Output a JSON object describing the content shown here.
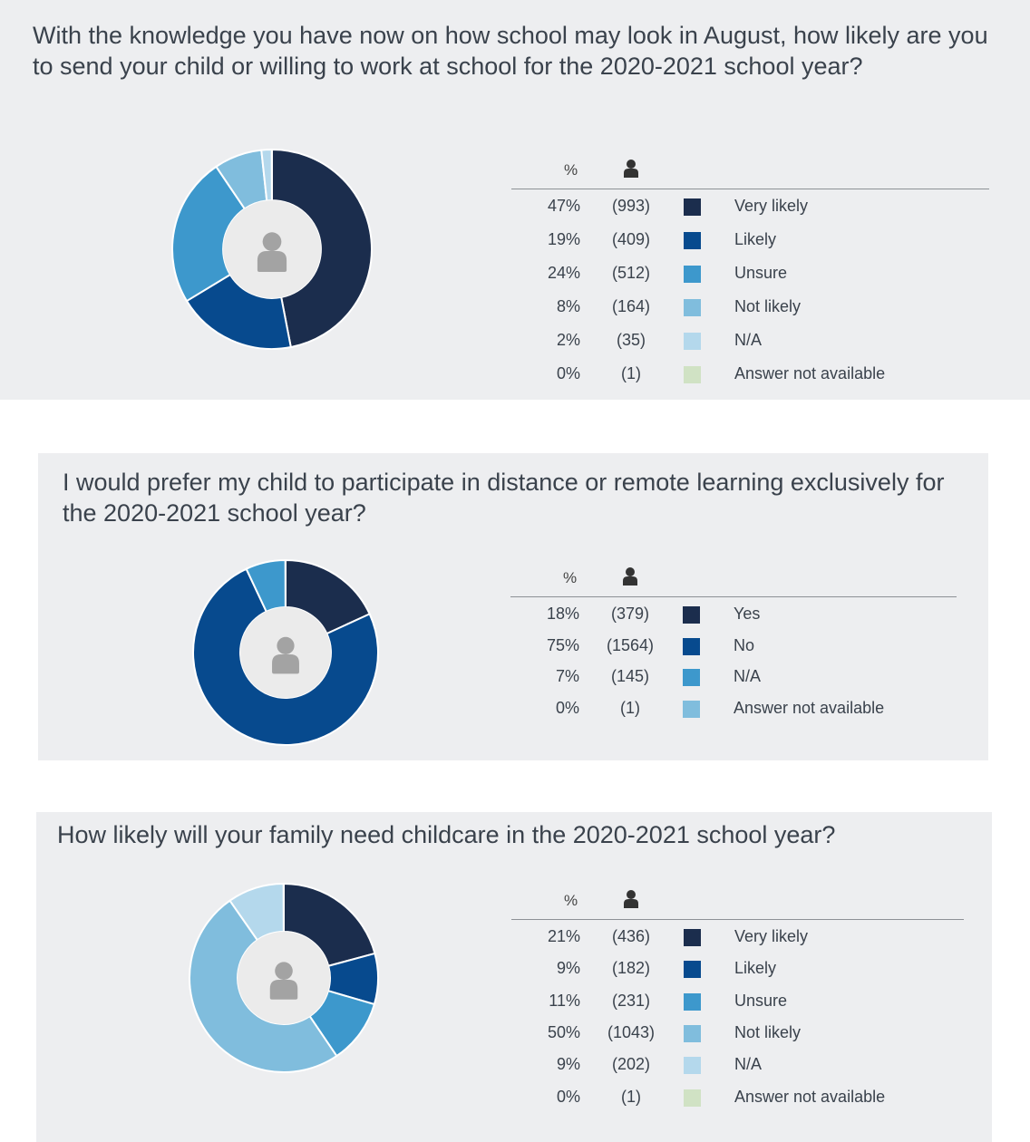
{
  "charts": [
    {
      "question": "With the knowledge you have now on how school may look in August, how likely are you to send your child or willing to work at school for the 2020-2021 school year?",
      "header_pct": "%",
      "rows": [
        {
          "pct": "47%",
          "count": "(993)",
          "label": "Very likely",
          "color": "#1b2d4d"
        },
        {
          "pct": "19%",
          "count": "(409)",
          "label": "Likely",
          "color": "#074a8e"
        },
        {
          "pct": "24%",
          "count": "(512)",
          "label": "Unsure",
          "color": "#3d98cc"
        },
        {
          "pct": "8%",
          "count": "(164)",
          "label": "Not likely",
          "color": "#80bddd"
        },
        {
          "pct": "2%",
          "count": "(35)",
          "label": "N/A",
          "color": "#b4d8ec"
        },
        {
          "pct": "0%",
          "count": "(1)",
          "label": "Answer not available",
          "color": "#d0e2c4"
        }
      ]
    },
    {
      "question": "I would prefer my child to participate in distance or remote learning exclusively for the 2020-2021 school year?",
      "header_pct": "%",
      "rows": [
        {
          "pct": "18%",
          "count": "(379)",
          "label": "Yes",
          "color": "#1b2d4d"
        },
        {
          "pct": "75%",
          "count": "(1564)",
          "label": "No",
          "color": "#074a8e"
        },
        {
          "pct": "7%",
          "count": "(145)",
          "label": "N/A",
          "color": "#3d98cc"
        },
        {
          "pct": "0%",
          "count": "(1)",
          "label": "Answer not available",
          "color": "#80bddd"
        }
      ]
    },
    {
      "question": "How likely will your family need childcare in the 2020-2021 school year?",
      "header_pct": "%",
      "rows": [
        {
          "pct": "21%",
          "count": "(436)",
          "label": "Very likely",
          "color": "#1b2d4d"
        },
        {
          "pct": "9%",
          "count": "(182)",
          "label": "Likely",
          "color": "#074a8e"
        },
        {
          "pct": "11%",
          "count": "(231)",
          "label": "Unsure",
          "color": "#3d98cc"
        },
        {
          "pct": "50%",
          "count": "(1043)",
          "label": "Not likely",
          "color": "#80bddd"
        },
        {
          "pct": "9%",
          "count": "(202)",
          "label": "N/A",
          "color": "#b4d8ec"
        },
        {
          "pct": "0%",
          "count": "(1)",
          "label": "Answer not available",
          "color": "#d0e2c4"
        }
      ]
    }
  ],
  "chart_data": [
    {
      "type": "pie",
      "title": "With the knowledge you have now on how school may look in August, how likely are you to send your child or willing to work at school for the 2020-2021 school year?",
      "categories": [
        "Very likely",
        "Likely",
        "Unsure",
        "Not likely",
        "N/A",
        "Answer not available"
      ],
      "values": [
        993,
        409,
        512,
        164,
        35,
        1
      ],
      "percent": [
        47,
        19,
        24,
        8,
        2,
        0
      ],
      "colors": [
        "#1b2d4d",
        "#074a8e",
        "#3d98cc",
        "#80bddd",
        "#b4d8ec",
        "#d0e2c4"
      ]
    },
    {
      "type": "pie",
      "title": "I would prefer my child to participate in distance or remote learning exclusively for the 2020-2021 school year?",
      "categories": [
        "Yes",
        "No",
        "N/A",
        "Answer not available"
      ],
      "values": [
        379,
        1564,
        145,
        1
      ],
      "percent": [
        18,
        75,
        7,
        0
      ],
      "colors": [
        "#1b2d4d",
        "#074a8e",
        "#3d98cc",
        "#80bddd"
      ]
    },
    {
      "type": "pie",
      "title": "How likely will your family need childcare in the 2020-2021 school year?",
      "categories": [
        "Very likely",
        "Likely",
        "Unsure",
        "Not likely",
        "N/A",
        "Answer not available"
      ],
      "values": [
        436,
        182,
        231,
        1043,
        202,
        1
      ],
      "percent": [
        21,
        9,
        11,
        50,
        9,
        0
      ],
      "colors": [
        "#1b2d4d",
        "#074a8e",
        "#3d98cc",
        "#80bddd",
        "#b4d8ec",
        "#d0e2c4"
      ]
    }
  ]
}
